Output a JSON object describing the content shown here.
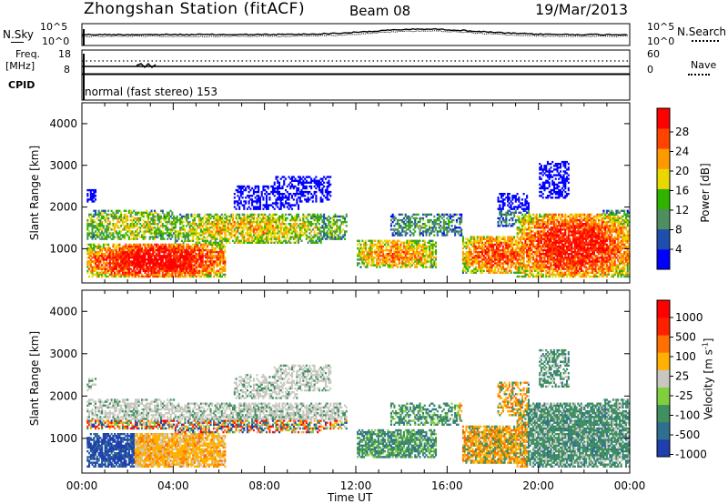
{
  "header": {
    "station": "Zhongshan Station (fitACF)",
    "beam": "Beam 08",
    "date": "19/Mar/2013"
  },
  "nsky_panel": {
    "left_label": "N.Sky",
    "right_label": "N.Search",
    "left_ticks": [
      "10^5",
      "10^0"
    ],
    "right_ticks": [
      "10^5",
      "10^0"
    ]
  },
  "freq_panel": {
    "left_label_1": "Freq.",
    "left_label_2": "[MHz]",
    "right_label": "Nave",
    "left_ticks": [
      "18",
      "8"
    ],
    "right_ticks": [
      "60",
      "0"
    ]
  },
  "cpid": {
    "label": "CPID",
    "mode": "normal (fast stereo) 153"
  },
  "colors": {
    "power_scale": [
      "#0000ff",
      "#1f4fae",
      "#4f8f5f",
      "#2fb300",
      "#e8d800",
      "#ff9900",
      "#ff4400",
      "#ff0000"
    ],
    "velocity_scale": [
      "#1f3fae",
      "#2f6f8f",
      "#3f8f5f",
      "#7fcf3f",
      "#c8c8c0",
      "#ffb000",
      "#ff7000",
      "#ff2000",
      "#ff0000"
    ]
  },
  "chart_data": [
    {
      "type": "heatmap",
      "name": "power",
      "xlabel": "Time UT",
      "ylabel": "Slant Range [km]",
      "xlim": [
        0,
        24
      ],
      "ylim": [
        180,
        4500
      ],
      "x_ticks": [
        "00:00",
        "04:00",
        "08:00",
        "12:00",
        "16:00",
        "20:00",
        "00:00"
      ],
      "y_ticks": [
        "1000",
        "2000",
        "3000",
        "4000"
      ],
      "colorbar_label": "Power [dB]",
      "colorbar_ticks": [
        "28",
        "24",
        "20",
        "16",
        "12",
        "8",
        "4"
      ],
      "colorbar_range": [
        0,
        32
      ]
    },
    {
      "type": "heatmap",
      "name": "velocity",
      "xlabel": "Time UT",
      "ylabel": "Slant Range [km]",
      "xlim": [
        0,
        24
      ],
      "ylim": [
        180,
        4500
      ],
      "x_ticks": [
        "00:00",
        "04:00",
        "08:00",
        "12:00",
        "16:00",
        "20:00",
        "00:00"
      ],
      "y_ticks": [
        "1000",
        "2000",
        "3000",
        "4000"
      ],
      "colorbar_label": "Velocity [m s",
      "colorbar_label_sup": "-1",
      "colorbar_label_end": "]",
      "colorbar_ticks": [
        "1000",
        "500",
        "100",
        "25",
        "-25",
        "-100",
        "-500",
        "-1000"
      ]
    }
  ],
  "xaxis": {
    "ticks": [
      "00:00",
      "04:00",
      "08:00",
      "12:00",
      "16:00",
      "20:00",
      "00:00"
    ],
    "label": "Time UT"
  }
}
